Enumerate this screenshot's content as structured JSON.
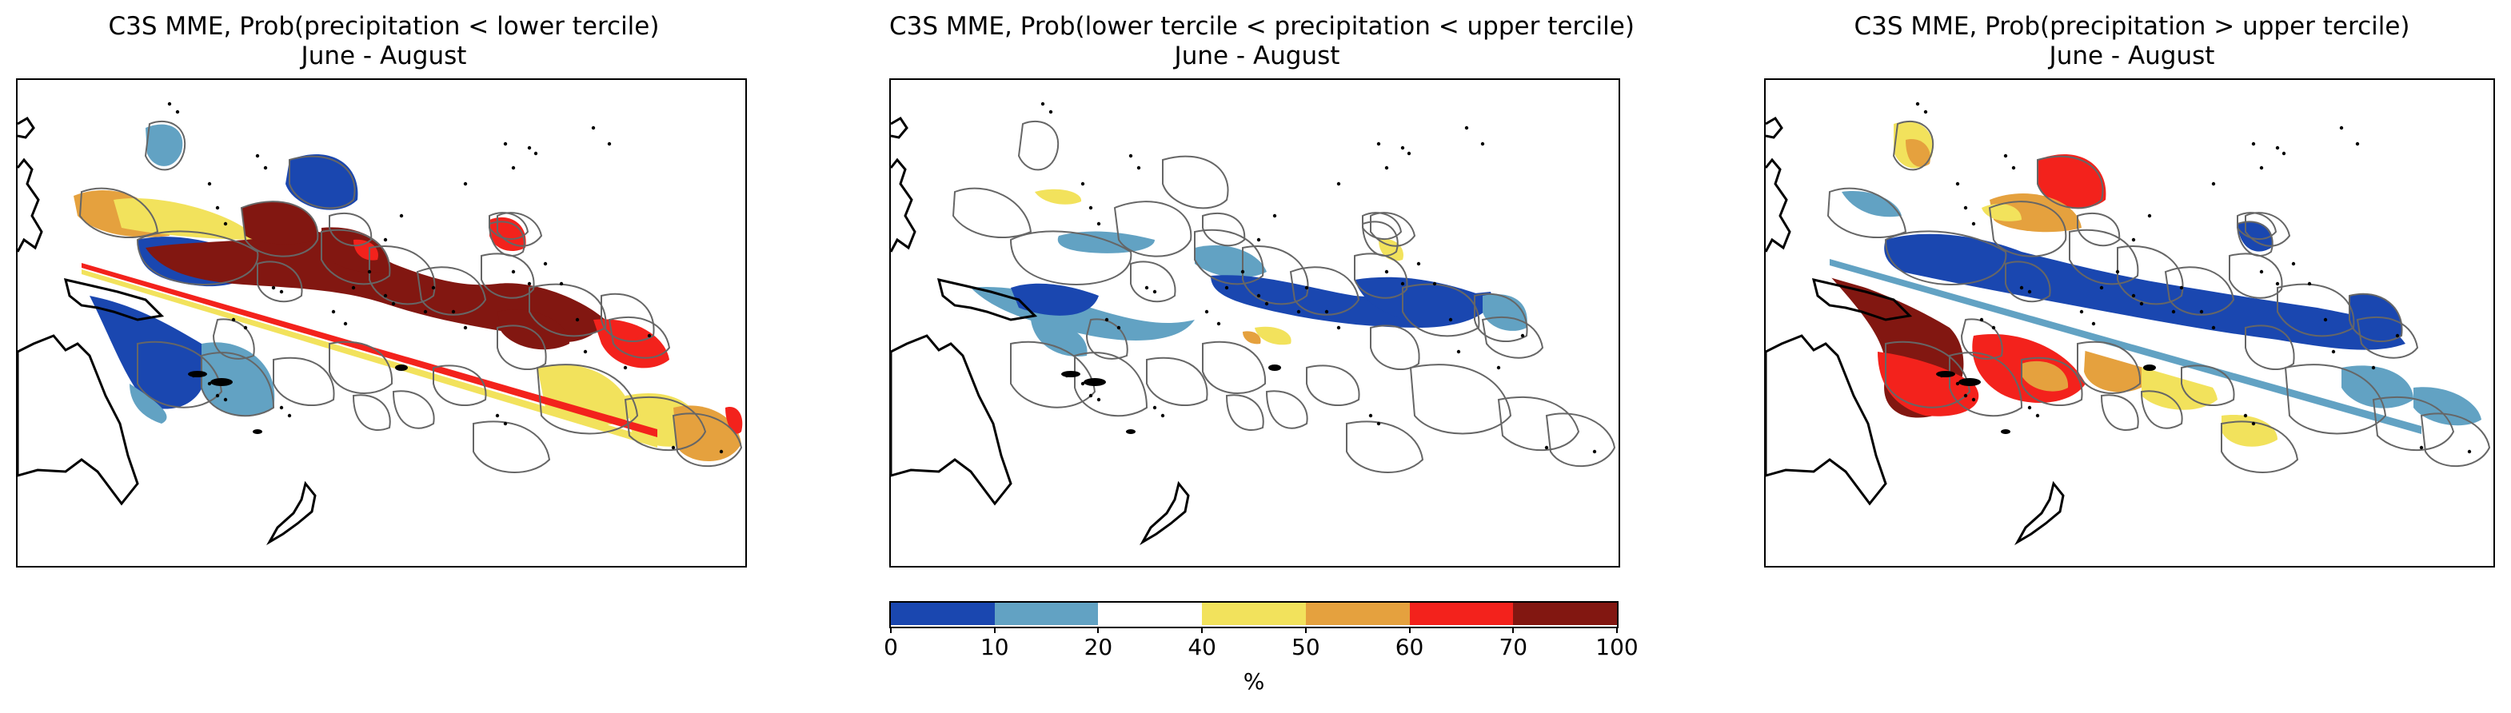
{
  "panels": [
    {
      "title_line1": "C3S MME, Prob(precipitation < lower tercile)",
      "title_line2": "June - August",
      "pattern": "lower"
    },
    {
      "title_line1": "C3S MME, Prob(lower tercile < precipitation < upper tercile)",
      "title_line2": "June - August",
      "pattern": "middle"
    },
    {
      "title_line1": "C3S MME, Prob(precipitation > upper tercile)",
      "title_line2": "June - August",
      "pattern": "upper"
    }
  ],
  "colorbar": {
    "unit": "%",
    "tick_labels": [
      "0",
      "10",
      "20",
      "40",
      "50",
      "60",
      "70",
      "100"
    ],
    "colors": [
      "#1a47b0",
      "#62a2c3",
      "#ffffff",
      "#f2e25c",
      "#e5a13e",
      "#f3221c",
      "#821711"
    ]
  },
  "map_colors": {
    "land": "#000000",
    "eez_border": "#666666"
  }
}
